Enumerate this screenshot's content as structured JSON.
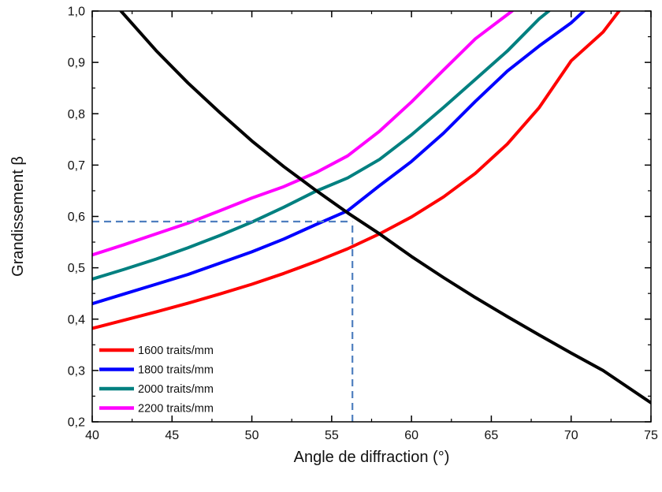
{
  "chart_data": {
    "type": "line",
    "xlabel": "Angle de diffraction (°)",
    "ylabel": "Grandissement β",
    "xlim": [
      40,
      75
    ],
    "ylim": [
      0.2,
      1.0
    ],
    "x_ticks": [
      40,
      45,
      50,
      55,
      60,
      65,
      70,
      75
    ],
    "x_tick_labels": [
      "40",
      "45",
      "50",
      "55",
      "60",
      "65",
      "70",
      "75"
    ],
    "y_ticks": [
      0.2,
      0.3,
      0.4,
      0.5,
      0.6,
      0.7,
      0.8,
      0.9,
      1.0
    ],
    "y_tick_labels": [
      "0,2",
      "0,3",
      "0,4",
      "0,5",
      "0,6",
      "0,7",
      "0,8",
      "0,9",
      "1,0"
    ],
    "grid": false,
    "legend_position": "bottom-left",
    "series": [
      {
        "name": "1600 traits/mm",
        "color": "#ff0000",
        "x": [
          40,
          42,
          44,
          46,
          48,
          50,
          52,
          54,
          56,
          58,
          60,
          62,
          64,
          66,
          68,
          70,
          72,
          73
        ],
        "y": [
          0.382,
          0.398,
          0.414,
          0.431,
          0.449,
          0.468,
          0.489,
          0.512,
          0.537,
          0.566,
          0.599,
          0.638,
          0.684,
          0.741,
          0.812,
          0.903,
          0.959,
          1.0
        ]
      },
      {
        "name": "1800 traits/mm",
        "color": "#0000ff",
        "x": [
          40,
          42,
          44,
          46,
          48,
          50,
          52,
          54,
          56,
          58,
          60,
          62,
          64,
          66,
          68,
          70,
          70.8
        ],
        "y": [
          0.43,
          0.449,
          0.468,
          0.487,
          0.509,
          0.531,
          0.556,
          0.584,
          0.611,
          0.66,
          0.707,
          0.762,
          0.824,
          0.883,
          0.932,
          0.977,
          1.0
        ]
      },
      {
        "name": "2000 traits/mm",
        "color": "#008080",
        "x": [
          40,
          42,
          44,
          46,
          48,
          50,
          52,
          54,
          56,
          58,
          60,
          62,
          64,
          66,
          68,
          68.6
        ],
        "y": [
          0.478,
          0.497,
          0.517,
          0.539,
          0.563,
          0.589,
          0.618,
          0.649,
          0.675,
          0.711,
          0.759,
          0.812,
          0.867,
          0.922,
          0.985,
          1.0
        ]
      },
      {
        "name": "2200 traits/mm",
        "color": "#ff00ff",
        "x": [
          40,
          42,
          44,
          46,
          48,
          50,
          52,
          54,
          56,
          58,
          60,
          62,
          64,
          66,
          66.3
        ],
        "y": [
          0.525,
          0.545,
          0.566,
          0.587,
          0.611,
          0.636,
          0.658,
          0.685,
          0.718,
          0.766,
          0.823,
          0.885,
          0.946,
          0.993,
          1.0
        ]
      },
      {
        "color": "#000000",
        "x": [
          41.8,
          44,
          46,
          48,
          50,
          52,
          54,
          56,
          58,
          60,
          62,
          64,
          66,
          68,
          70,
          72,
          75
        ],
        "y": [
          1.0,
          0.923,
          0.86,
          0.802,
          0.747,
          0.697,
          0.651,
          0.607,
          0.566,
          0.522,
          0.481,
          0.442,
          0.405,
          0.369,
          0.334,
          0.3,
          0.237
        ]
      }
    ],
    "reference_lines": [
      {
        "type": "horizontal",
        "y": 0.59,
        "x_from": 40,
        "x_to": 56.3,
        "color": "#4f7fbf",
        "style": "dashed"
      },
      {
        "type": "vertical",
        "x": 56.3,
        "y_from": 0.2,
        "y_to": 0.59,
        "color": "#4f7fbf",
        "style": "dashed"
      }
    ]
  }
}
